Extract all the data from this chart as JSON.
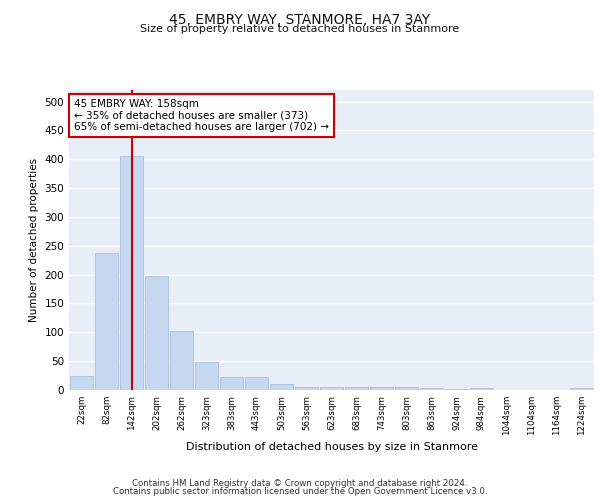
{
  "title": "45, EMBRY WAY, STANMORE, HA7 3AY",
  "subtitle": "Size of property relative to detached houses in Stanmore",
  "xlabel": "Distribution of detached houses by size in Stanmore",
  "ylabel": "Number of detached properties",
  "bar_color": "#c5d8f0",
  "bar_edge_color": "#a0b8d8",
  "background_color": "#e8eef8",
  "grid_color": "#ffffff",
  "categories": [
    "22sqm",
    "82sqm",
    "142sqm",
    "202sqm",
    "262sqm",
    "323sqm",
    "383sqm",
    "443sqm",
    "503sqm",
    "563sqm",
    "623sqm",
    "683sqm",
    "743sqm",
    "803sqm",
    "863sqm",
    "924sqm",
    "984sqm",
    "1044sqm",
    "1104sqm",
    "1164sqm",
    "1224sqm"
  ],
  "values": [
    25,
    237,
    405,
    198,
    103,
    48,
    23,
    23,
    10,
    5,
    5,
    5,
    5,
    6,
    3,
    1,
    3,
    0,
    0,
    0,
    3
  ],
  "ylim": [
    0,
    520
  ],
  "yticks": [
    0,
    50,
    100,
    150,
    200,
    250,
    300,
    350,
    400,
    450,
    500
  ],
  "red_line_x": 2.0,
  "annotation_text": "45 EMBRY WAY: 158sqm\n← 35% of detached houses are smaller (373)\n65% of semi-detached houses are larger (702) →",
  "annotation_box_color": "#ffffff",
  "annotation_box_edge": "#cc0000",
  "red_line_color": "#cc0000",
  "footer_line1": "Contains HM Land Registry data © Crown copyright and database right 2024.",
  "footer_line2": "Contains public sector information licensed under the Open Government Licence v3.0."
}
